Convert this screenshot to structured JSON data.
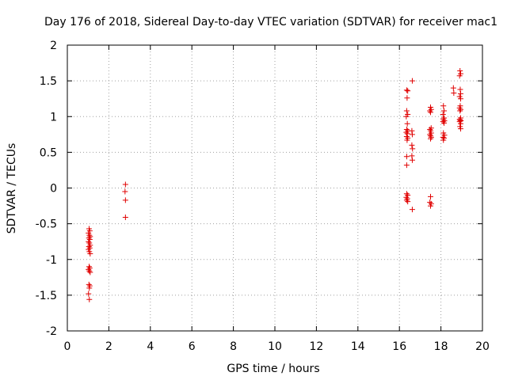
{
  "chart_data": {
    "type": "scatter",
    "title": "Day 176 of 2018, Sidereal Day-to-day VTEC variation (SDTVAR) for receiver mac1",
    "xlabel": "GPS time / hours",
    "ylabel": "SDTVAR / TECUs",
    "xlim": [
      0,
      20
    ],
    "ylim": [
      -2,
      2
    ],
    "xticks": [
      0,
      2,
      4,
      6,
      8,
      10,
      12,
      14,
      16,
      18,
      20
    ],
    "yticks": [
      -2,
      -1.5,
      -1,
      -0.5,
      0,
      0.5,
      1,
      1.5,
      2
    ],
    "xtick_labels": [
      "0",
      "2",
      "4",
      "6",
      "8",
      "10",
      "12",
      "14",
      "16",
      "18",
      "20"
    ],
    "ytick_labels": [
      "-2",
      "-1.5",
      "-1",
      "-0.5",
      "0",
      "0.5",
      "1",
      "1.5",
      "2"
    ],
    "grid": true,
    "marker": "plus",
    "color": "#e00000",
    "series": [
      {
        "name": "SDTVAR",
        "points": [
          [
            1.05,
            -0.57
          ],
          [
            1.08,
            -0.6
          ],
          [
            1.02,
            -0.63
          ],
          [
            1.06,
            -0.66
          ],
          [
            1.1,
            -0.68
          ],
          [
            1.04,
            -0.7
          ],
          [
            1.08,
            -0.72
          ],
          [
            1.02,
            -0.75
          ],
          [
            1.06,
            -0.77
          ],
          [
            1.1,
            -0.8
          ],
          [
            1.04,
            -0.82
          ],
          [
            1.08,
            -0.84
          ],
          [
            1.02,
            -0.86
          ],
          [
            1.06,
            -0.89
          ],
          [
            1.1,
            -0.92
          ],
          [
            1.05,
            -1.1
          ],
          [
            1.08,
            -1.12
          ],
          [
            1.02,
            -1.14
          ],
          [
            1.06,
            -1.16
          ],
          [
            1.1,
            -1.18
          ],
          [
            1.04,
            -1.35
          ],
          [
            1.08,
            -1.37
          ],
          [
            1.06,
            -1.4
          ],
          [
            1.02,
            -1.48
          ],
          [
            1.06,
            -1.56
          ],
          [
            2.8,
            0.05
          ],
          [
            2.78,
            -0.05
          ],
          [
            2.8,
            -0.17
          ],
          [
            2.8,
            -0.41
          ],
          [
            16.35,
            1.37
          ],
          [
            16.4,
            1.36
          ],
          [
            16.37,
            1.26
          ],
          [
            16.35,
            1.08
          ],
          [
            16.4,
            1.03
          ],
          [
            16.33,
            1.0
          ],
          [
            16.38,
            0.9
          ],
          [
            16.35,
            0.82
          ],
          [
            16.4,
            0.8
          ],
          [
            16.33,
            0.78
          ],
          [
            16.38,
            0.76
          ],
          [
            16.35,
            0.72
          ],
          [
            16.4,
            0.7
          ],
          [
            16.37,
            0.67
          ],
          [
            16.35,
            0.44
          ],
          [
            16.35,
            0.32
          ],
          [
            16.35,
            -0.08
          ],
          [
            16.4,
            -0.1
          ],
          [
            16.33,
            -0.13
          ],
          [
            16.38,
            -0.15
          ],
          [
            16.35,
            -0.17
          ],
          [
            16.4,
            -0.19
          ],
          [
            16.62,
            1.5
          ],
          [
            16.6,
            0.8
          ],
          [
            16.62,
            0.75
          ],
          [
            16.6,
            0.6
          ],
          [
            16.63,
            0.55
          ],
          [
            16.6,
            0.45
          ],
          [
            16.62,
            0.39
          ],
          [
            16.62,
            -0.3
          ],
          [
            17.5,
            1.13
          ],
          [
            17.53,
            1.1
          ],
          [
            17.47,
            1.08
          ],
          [
            17.5,
            1.06
          ],
          [
            17.53,
            0.84
          ],
          [
            17.47,
            0.82
          ],
          [
            17.5,
            0.8
          ],
          [
            17.53,
            0.77
          ],
          [
            17.47,
            0.75
          ],
          [
            17.5,
            0.73
          ],
          [
            17.53,
            0.71
          ],
          [
            17.5,
            0.69
          ],
          [
            17.5,
            -0.12
          ],
          [
            17.47,
            -0.2
          ],
          [
            17.53,
            -0.22
          ],
          [
            17.5,
            -0.25
          ],
          [
            18.12,
            1.15
          ],
          [
            18.15,
            1.08
          ],
          [
            18.1,
            1.03
          ],
          [
            18.15,
            0.98
          ],
          [
            18.12,
            0.96
          ],
          [
            18.17,
            0.94
          ],
          [
            18.1,
            0.93
          ],
          [
            18.15,
            0.91
          ],
          [
            18.12,
            0.77
          ],
          [
            18.17,
            0.74
          ],
          [
            18.1,
            0.71
          ],
          [
            18.15,
            0.7
          ],
          [
            18.12,
            0.67
          ],
          [
            18.6,
            1.4
          ],
          [
            18.62,
            1.33
          ],
          [
            18.92,
            1.64
          ],
          [
            18.95,
            1.6
          ],
          [
            18.9,
            1.57
          ],
          [
            18.93,
            1.38
          ],
          [
            18.95,
            1.32
          ],
          [
            18.9,
            1.28
          ],
          [
            18.95,
            1.25
          ],
          [
            18.93,
            1.15
          ],
          [
            18.9,
            1.12
          ],
          [
            18.95,
            1.1
          ],
          [
            18.92,
            1.08
          ],
          [
            18.95,
            0.98
          ],
          [
            18.9,
            0.96
          ],
          [
            18.93,
            0.95
          ],
          [
            18.96,
            0.94
          ],
          [
            18.9,
            0.93
          ],
          [
            18.95,
            0.9
          ],
          [
            18.92,
            0.86
          ],
          [
            18.95,
            0.83
          ]
        ]
      }
    ]
  }
}
